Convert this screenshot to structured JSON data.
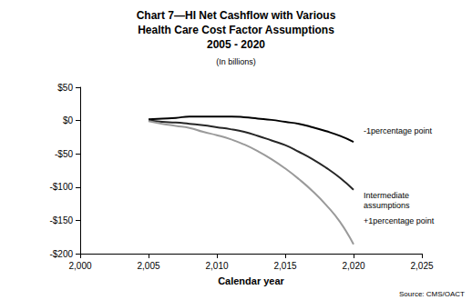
{
  "chart_data": {
    "type": "line",
    "title": "Chart 7—HI Net Cashflow with Various\nHealth Care Cost Factor Assumptions\n2005 - 2020",
    "subtitle": "(In billions)",
    "x_label": "Calendar year",
    "annotations": [
      "Source: CMS/OACT"
    ],
    "x": [
      2005,
      2006,
      2007,
      2008,
      2009,
      2010,
      2011,
      2012,
      2013,
      2014,
      2015,
      2016,
      2017,
      2018,
      2019,
      2020
    ],
    "series": [
      {
        "name": "-1percentage point",
        "color": "#000000",
        "values": [
          2,
          3,
          4,
          6,
          6,
          6,
          6,
          5,
          3,
          1,
          -2,
          -5,
          -10,
          -16,
          -23,
          -32
        ]
      },
      {
        "name": "Intermediate\nassumptions",
        "color": "#262626",
        "values": [
          0,
          -2,
          -3,
          -5,
          -7,
          -10,
          -13,
          -17,
          -23,
          -30,
          -37,
          -47,
          -58,
          -71,
          -86,
          -104
        ]
      },
      {
        "name": "+1percentage point",
        "color": "#9a9a9a",
        "values": [
          -1,
          -5,
          -8,
          -11,
          -17,
          -22,
          -28,
          -36,
          -46,
          -58,
          -72,
          -88,
          -106,
          -127,
          -152,
          -186
        ]
      }
    ],
    "xlim": [
      2000,
      2025
    ],
    "xticks": [
      2000,
      2005,
      2010,
      2015,
      2020,
      2025
    ],
    "ylim": [
      -200,
      50
    ],
    "yticks": [
      {
        "value": -200,
        "label": "-$200"
      },
      {
        "value": -150,
        "label": "-$150"
      },
      {
        "value": -100,
        "label": "-$100"
      },
      {
        "value": -50,
        "label": "-$50"
      },
      {
        "value": 0,
        "label": "$0"
      },
      {
        "value": 50,
        "label": "$50"
      }
    ],
    "grid": false
  }
}
